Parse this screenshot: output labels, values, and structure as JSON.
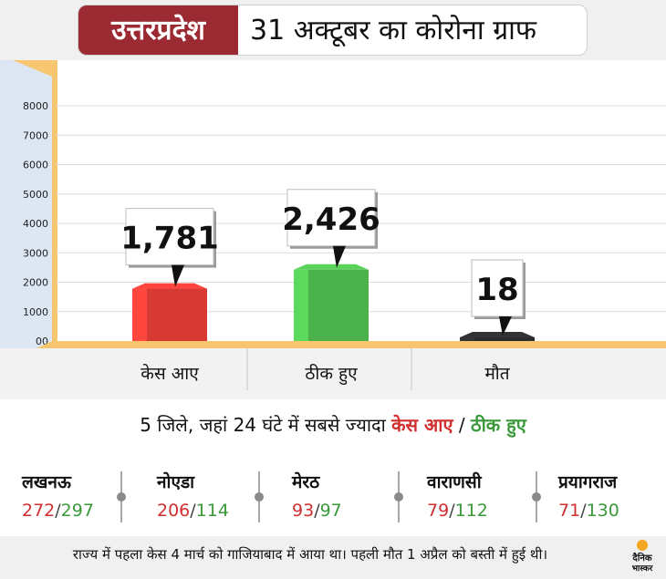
{
  "header": {
    "state": "उत्तरप्रदेश",
    "title": "31 अक्टूबर का कोरोना ग्राफ"
  },
  "chart_data": {
    "type": "bar",
    "categories": [
      "केस आए",
      "ठीक हुए",
      "मौत"
    ],
    "values": [
      1781,
      2426,
      18
    ],
    "value_labels": [
      "1,781",
      "2,426",
      "18"
    ],
    "yticks": [
      "00",
      "1000",
      "2000",
      "3000",
      "4000",
      "5000",
      "6000",
      "7000",
      "8000"
    ],
    "ylim": [
      0,
      8000
    ],
    "grid": true,
    "colors": [
      "#d73a33",
      "#4bb24b",
      "#2b2b2b"
    ]
  },
  "districts": {
    "title_prefix": "5 जिले, जहां 24 घंटे में सबसे ज्यादा",
    "cases_label": "केस आए",
    "divider": "/",
    "recovered_label": "ठीक हुए",
    "items": [
      {
        "name": "लखनऊ",
        "cases": "272",
        "recovered": "297"
      },
      {
        "name": "नोएडा",
        "cases": "206",
        "recovered": "114"
      },
      {
        "name": "मेरठ",
        "cases": "93",
        "recovered": "97"
      },
      {
        "name": "वाराणसी",
        "cases": "79",
        "recovered": "112"
      },
      {
        "name": "प्रयागराज",
        "cases": "71",
        "recovered": "130"
      }
    ]
  },
  "footer": {
    "note": "राज्य में पहला केस 4 मार्च को गाजियाबाद में आया था। पहली मौत 1 अप्रैल को बस्ती में हुई थी।",
    "logo_line1": "दैनिक",
    "logo_line2": "भास्कर"
  },
  "colors": {
    "header_accent": "#9b2a33",
    "cases": "#d12f2f",
    "recovered": "#3a9a3a",
    "frame": "#f7c670"
  }
}
